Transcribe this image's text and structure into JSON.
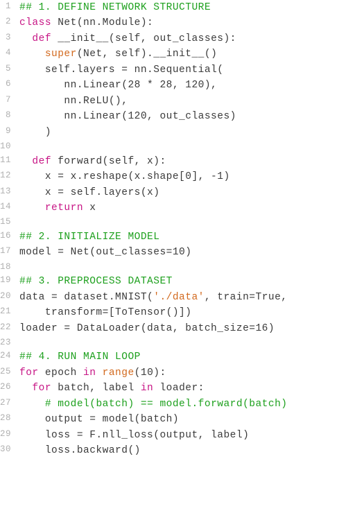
{
  "colors": {
    "comment": "#1da01d",
    "keyword": "#c71585",
    "builtin": "#d2691e",
    "string": "#d2691e",
    "default": "#3a3a3a",
    "linenum": "#b0b0b0",
    "background": "#ffffff"
  },
  "font": {
    "family": "monospace",
    "size_pt": 11,
    "line_height": 1.6
  },
  "lines": [
    {
      "n": 1,
      "tokens": [
        {
          "t": "## 1. DEFINE NETWORK STRUCTURE",
          "c": "comment"
        }
      ]
    },
    {
      "n": 2,
      "tokens": [
        {
          "t": "class",
          "c": "keyword"
        },
        {
          "t": " Net(nn.Module):",
          "c": "default"
        }
      ]
    },
    {
      "n": 3,
      "tokens": [
        {
          "t": "  ",
          "c": "default"
        },
        {
          "t": "def",
          "c": "keyword"
        },
        {
          "t": " __init__(self, out_classes):",
          "c": "default"
        }
      ]
    },
    {
      "n": 4,
      "tokens": [
        {
          "t": "    ",
          "c": "default"
        },
        {
          "t": "super",
          "c": "builtin"
        },
        {
          "t": "(Net, self).__init__()",
          "c": "default"
        }
      ]
    },
    {
      "n": 5,
      "tokens": [
        {
          "t": "    self.layers = nn.Sequential(",
          "c": "default"
        }
      ]
    },
    {
      "n": 6,
      "tokens": [
        {
          "t": "       nn.Linear(28 * 28, 120),",
          "c": "default"
        }
      ]
    },
    {
      "n": 7,
      "tokens": [
        {
          "t": "       nn.ReLU(),",
          "c": "default"
        }
      ]
    },
    {
      "n": 8,
      "tokens": [
        {
          "t": "       nn.Linear(120, out_classes)",
          "c": "default"
        }
      ]
    },
    {
      "n": 9,
      "tokens": [
        {
          "t": "    )",
          "c": "default"
        }
      ]
    },
    {
      "n": 10,
      "tokens": [
        {
          "t": "",
          "c": "default"
        }
      ]
    },
    {
      "n": 11,
      "tokens": [
        {
          "t": "  ",
          "c": "default"
        },
        {
          "t": "def",
          "c": "keyword"
        },
        {
          "t": " forward(self, x):",
          "c": "default"
        }
      ]
    },
    {
      "n": 12,
      "tokens": [
        {
          "t": "    x = x.reshape(x.shape[0], -1)",
          "c": "default"
        }
      ]
    },
    {
      "n": 13,
      "tokens": [
        {
          "t": "    x = self.layers(x)",
          "c": "default"
        }
      ]
    },
    {
      "n": 14,
      "tokens": [
        {
          "t": "    ",
          "c": "default"
        },
        {
          "t": "return",
          "c": "keyword"
        },
        {
          "t": " x",
          "c": "default"
        }
      ]
    },
    {
      "n": 15,
      "tokens": [
        {
          "t": "",
          "c": "default"
        }
      ]
    },
    {
      "n": 16,
      "tokens": [
        {
          "t": "## 2. INITIALIZE MODEL",
          "c": "comment"
        }
      ]
    },
    {
      "n": 17,
      "tokens": [
        {
          "t": "model = Net(out_classes=10)",
          "c": "default"
        }
      ]
    },
    {
      "n": 18,
      "tokens": [
        {
          "t": "",
          "c": "default"
        }
      ]
    },
    {
      "n": 19,
      "tokens": [
        {
          "t": "## 3. PREPROCESS DATASET",
          "c": "comment"
        }
      ]
    },
    {
      "n": 20,
      "tokens": [
        {
          "t": "data = dataset.MNIST(",
          "c": "default"
        },
        {
          "t": "'./data'",
          "c": "string"
        },
        {
          "t": ", train=True,",
          "c": "default"
        }
      ]
    },
    {
      "n": 21,
      "tokens": [
        {
          "t": "    transform=[ToTensor()])",
          "c": "default"
        }
      ]
    },
    {
      "n": 22,
      "tokens": [
        {
          "t": "loader = DataLoader(data, batch_size=16)",
          "c": "default"
        }
      ]
    },
    {
      "n": 23,
      "tokens": [
        {
          "t": "",
          "c": "default"
        }
      ]
    },
    {
      "n": 24,
      "tokens": [
        {
          "t": "## 4. RUN MAIN LOOP",
          "c": "comment"
        }
      ]
    },
    {
      "n": 25,
      "tokens": [
        {
          "t": "for",
          "c": "keyword"
        },
        {
          "t": " epoch ",
          "c": "default"
        },
        {
          "t": "in",
          "c": "keyword"
        },
        {
          "t": " ",
          "c": "default"
        },
        {
          "t": "range",
          "c": "builtin"
        },
        {
          "t": "(10):",
          "c": "default"
        }
      ]
    },
    {
      "n": 26,
      "tokens": [
        {
          "t": "  ",
          "c": "default"
        },
        {
          "t": "for",
          "c": "keyword"
        },
        {
          "t": " batch, label ",
          "c": "default"
        },
        {
          "t": "in",
          "c": "keyword"
        },
        {
          "t": " loader:",
          "c": "default"
        }
      ]
    },
    {
      "n": 27,
      "tokens": [
        {
          "t": "    ",
          "c": "default"
        },
        {
          "t": "# model(batch) == model.forward(batch)",
          "c": "comment"
        }
      ]
    },
    {
      "n": 28,
      "tokens": [
        {
          "t": "    output = model(batch)",
          "c": "default"
        }
      ]
    },
    {
      "n": 29,
      "tokens": [
        {
          "t": "    loss = F.nll_loss(output, label)",
          "c": "default"
        }
      ]
    },
    {
      "n": 30,
      "tokens": [
        {
          "t": "    loss.backward()",
          "c": "default"
        }
      ]
    }
  ]
}
